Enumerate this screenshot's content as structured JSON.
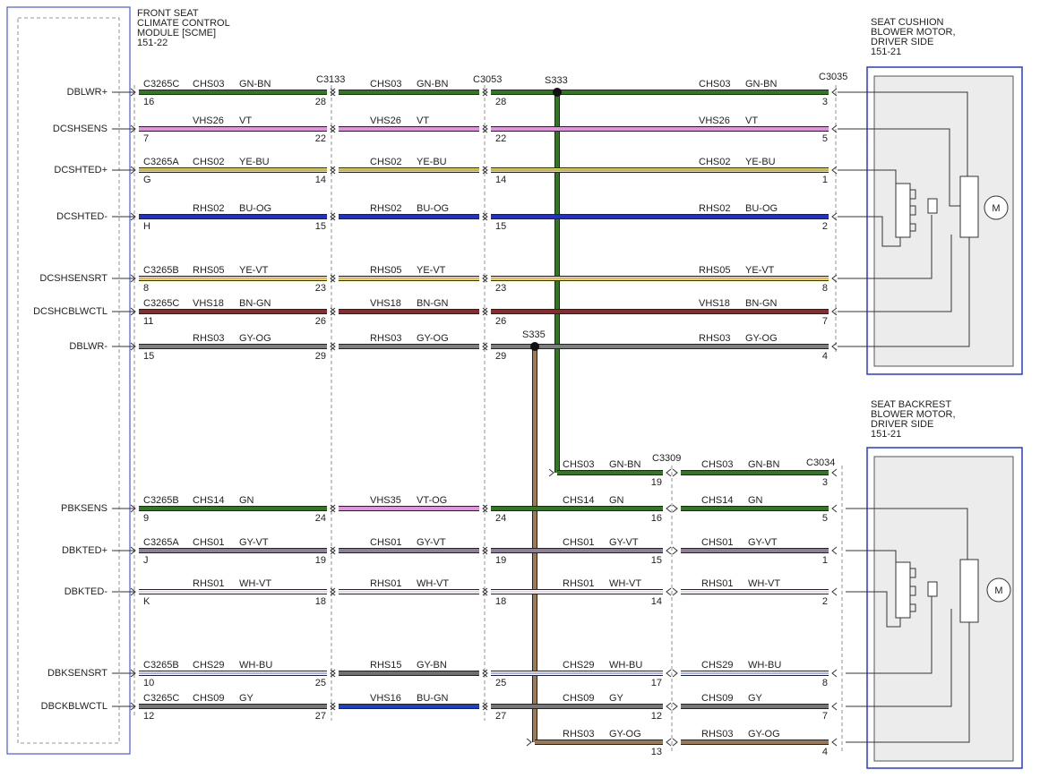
{
  "module": {
    "lines": [
      "FRONT SEAT",
      "CLIMATE CONTROL",
      "MODULE [SCME]",
      "151-22"
    ]
  },
  "components": [
    {
      "lines": [
        "SEAT CUSHION",
        "BLOWER MOTOR,",
        "DRIVER SIDE",
        "151-21"
      ]
    },
    {
      "lines": [
        "SEAT BACKREST",
        "BLOWER MOTOR,",
        "DRIVER SIDE",
        "151-21"
      ]
    }
  ],
  "connectors": [
    "C3133",
    "C3053",
    "C3035",
    "C3309",
    "C3034"
  ],
  "splices": [
    {
      "label": "S333",
      "stroke": "#2f7a1f"
    },
    {
      "label": "S335",
      "stroke": "#a07a50"
    }
  ],
  "rows": [
    {
      "signal": "DBLWR+",
      "segments": [
        {
          "connector": "C3265C",
          "circuit": "CHS03",
          "color_code": "GN-BN",
          "pin_start": "16",
          "pin_end": "28",
          "stroke": "#2f7a1f"
        },
        {
          "circuit": "CHS03",
          "color_code": "GN-BN",
          "stroke": "#2f7a1f"
        },
        {
          "circuit": "CHS03",
          "color_code": "GN-BN",
          "pin_start": "28",
          "pin_end": "3",
          "stroke": "#2f7a1f"
        }
      ]
    },
    {
      "signal": "DCSHSENS",
      "segments": [
        {
          "circuit": "VHS26",
          "color_code": "VT",
          "pin_start": "7",
          "pin_end": "22",
          "stroke": "#e590e5"
        },
        {
          "circuit": "VHS26",
          "color_code": "VT",
          "stroke": "#e590e5"
        },
        {
          "circuit": "VHS26",
          "color_code": "VT",
          "pin_start": "22",
          "pin_end": "5",
          "stroke": "#e590e5"
        }
      ]
    },
    {
      "signal": "DCSHTED+",
      "segments": [
        {
          "connector": "C3265A",
          "circuit": "CHS02",
          "color_code": "YE-BU",
          "pin_start": "G",
          "pin_end": "14",
          "stroke": "#f2e24a",
          "stripe": "#7a7ad0"
        },
        {
          "circuit": "CHS02",
          "color_code": "YE-BU",
          "stroke": "#f2e24a",
          "stripe": "#7a7ad0"
        },
        {
          "circuit": "CHS02",
          "color_code": "YE-BU",
          "pin_start": "14",
          "pin_end": "1",
          "stroke": "#f2e24a",
          "stripe": "#7a7ad0"
        }
      ]
    },
    {
      "signal": "DCSHTED-",
      "segments": [
        {
          "circuit": "RHS02",
          "color_code": "BU-OG",
          "pin_start": "H",
          "pin_end": "15",
          "stroke": "#1f2fd0"
        },
        {
          "circuit": "RHS02",
          "color_code": "BU-OG",
          "stroke": "#1f2fd0"
        },
        {
          "circuit": "RHS02",
          "color_code": "BU-OG",
          "pin_start": "15",
          "pin_end": "2",
          "stroke": "#1f2fd0"
        }
      ]
    },
    {
      "signal": "DCSHSENSRT",
      "segments": [
        {
          "connector": "C3265B",
          "circuit": "RHS05",
          "color_code": "YE-VT",
          "pin_start": "8",
          "pin_end": "23",
          "stroke": "#f2e24a",
          "stripe": "#c08ac0"
        },
        {
          "circuit": "RHS05",
          "color_code": "YE-VT",
          "stroke": "#f2e24a",
          "stripe": "#c08ac0"
        },
        {
          "circuit": "RHS05",
          "color_code": "YE-VT",
          "pin_start": "23",
          "pin_end": "8",
          "stroke": "#f2e24a",
          "stripe": "#c08ac0"
        }
      ]
    },
    {
      "signal": "DCSHCBLWCTL",
      "segments": [
        {
          "connector": "C3265C",
          "circuit": "VHS18",
          "color_code": "BN-GN",
          "pin_start": "11",
          "pin_end": "26",
          "stroke": "#8b2a2a"
        },
        {
          "circuit": "VHS18",
          "color_code": "BN-GN",
          "stroke": "#8b2a2a"
        },
        {
          "circuit": "VHS18",
          "color_code": "BN-GN",
          "pin_start": "26",
          "pin_end": "7",
          "stroke": "#8b2a2a"
        }
      ]
    },
    {
      "signal": "DBLWR-",
      "segments": [
        {
          "circuit": "RHS03",
          "color_code": "GY-OG",
          "pin_start": "15",
          "pin_end": "29",
          "stroke": "#7f7f7f"
        },
        {
          "circuit": "RHS03",
          "color_code": "GY-OG",
          "stroke": "#7f7f7f"
        },
        {
          "circuit": "RHS03",
          "color_code": "GY-OG",
          "pin_start": "29",
          "pin_end": "4",
          "stroke": "#7f7f7f"
        }
      ]
    },
    {
      "segments": [
        {
          "circuit": "CHS03",
          "color_code": "GN-BN",
          "pin_end": "19",
          "stroke": "#2f7a1f"
        },
        {
          "circuit": "CHS03",
          "color_code": "GN-BN",
          "pin_end": "3",
          "stroke": "#2f7a1f"
        }
      ]
    },
    {
      "signal": "PBKSENS",
      "segments": [
        {
          "connector": "C3265B",
          "circuit": "CHS14",
          "color_code": "GN",
          "pin_start": "9",
          "pin_end": "24",
          "stroke": "#2f7a1f"
        },
        {
          "circuit": "VHS35",
          "color_code": "VT-OG",
          "stroke": "#e590e5"
        },
        {
          "circuit": "CHS14",
          "color_code": "GN",
          "pin_start": "24",
          "pin_end": "16",
          "stroke": "#2f7a1f"
        },
        {
          "circuit": "CHS14",
          "color_code": "GN",
          "pin_end": "5",
          "stroke": "#2f7a1f"
        }
      ]
    },
    {
      "signal": "DBKTED+",
      "segments": [
        {
          "connector": "C3265A",
          "circuit": "CHS01",
          "color_code": "GY-VT",
          "pin_start": "J",
          "pin_end": "19",
          "stroke": "#8e7e9a"
        },
        {
          "circuit": "CHS01",
          "color_code": "GY-VT",
          "stroke": "#8e7e9a"
        },
        {
          "circuit": "CHS01",
          "color_code": "GY-VT",
          "pin_start": "19",
          "pin_end": "15",
          "stroke": "#8e7e9a"
        },
        {
          "circuit": "CHS01",
          "color_code": "GY-VT",
          "pin_end": "1",
          "stroke": "#8e7e9a"
        }
      ]
    },
    {
      "signal": "DBKTED-",
      "segments": [
        {
          "circuit": "RHS01",
          "color_code": "WH-VT",
          "pin_start": "K",
          "pin_end": "18",
          "stroke": "#ffffff",
          "stripe": "#d8a8e0"
        },
        {
          "circuit": "RHS01",
          "color_code": "WH-VT",
          "stroke": "#ffffff",
          "stripe": "#d8a8e0"
        },
        {
          "circuit": "RHS01",
          "color_code": "WH-VT",
          "pin_start": "18",
          "pin_end": "14",
          "stroke": "#ffffff",
          "stripe": "#d8a8e0"
        },
        {
          "circuit": "RHS01",
          "color_code": "WH-VT",
          "pin_end": "2",
          "stroke": "#ffffff",
          "stripe": "#d8a8e0"
        }
      ]
    },
    {
      "signal": "DBKSENSRT",
      "segments": [
        {
          "connector": "C3265B",
          "circuit": "CHS29",
          "color_code": "WH-BU",
          "pin_start": "10",
          "pin_end": "25",
          "stroke": "#ffffff",
          "stripe": "#5060e0"
        },
        {
          "circuit": "RHS15",
          "color_code": "GY-BN",
          "stroke": "#707070"
        },
        {
          "circuit": "CHS29",
          "color_code": "WH-BU",
          "pin_start": "25",
          "pin_end": "17",
          "stroke": "#ffffff",
          "stripe": "#5060e0"
        },
        {
          "circuit": "CHS29",
          "color_code": "WH-BU",
          "pin_end": "8",
          "stroke": "#ffffff",
          "stripe": "#5060e0"
        }
      ]
    },
    {
      "signal": "DBCKBLWCTL",
      "segments": [
        {
          "connector": "C3265C",
          "circuit": "CHS09",
          "color_code": "GY",
          "pin_start": "12",
          "pin_end": "27",
          "stroke": "#777777"
        },
        {
          "circuit": "VHS16",
          "color_code": "BU-GN",
          "stroke": "#1f3fd0"
        },
        {
          "circuit": "CHS09",
          "color_code": "GY",
          "pin_start": "27",
          "pin_end": "12",
          "stroke": "#777777"
        },
        {
          "circuit": "CHS09",
          "color_code": "GY",
          "pin_end": "7",
          "stroke": "#777777"
        }
      ]
    },
    {
      "segments": [
        {
          "circuit": "RHS03",
          "color_code": "GY-OG",
          "pin_end": "13",
          "stroke": "#9a7a55"
        },
        {
          "circuit": "RHS03",
          "color_code": "GY-OG",
          "pin_end": "4",
          "stroke": "#9a7a55"
        }
      ]
    }
  ]
}
